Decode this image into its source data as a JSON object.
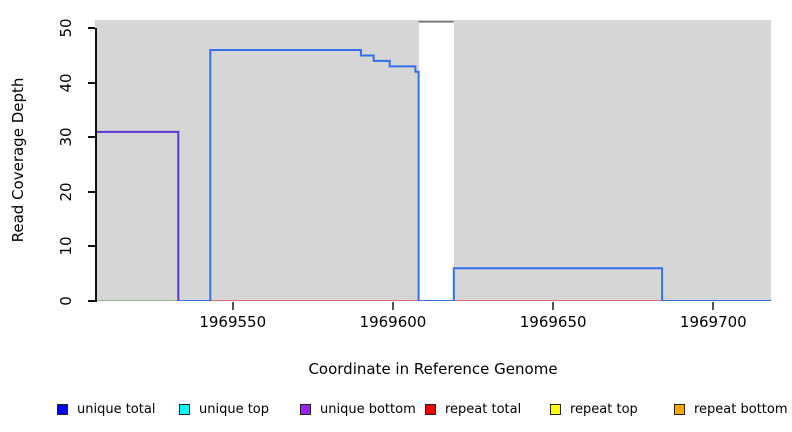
{
  "figure": {
    "y_label": "Read Coverage Depth",
    "x_label": "Coordinate in Reference Genome"
  },
  "legend": {
    "items": [
      {
        "label": "unique total",
        "color": "#0000ee"
      },
      {
        "label": "unique top",
        "color": "#00ffff"
      },
      {
        "label": "unique bottom",
        "color": "#a020f0"
      },
      {
        "label": "repeat total",
        "color": "#ee0000"
      },
      {
        "label": "repeat top",
        "color": "#ffff00"
      },
      {
        "label": "repeat bottom",
        "color": "#ffa500"
      }
    ]
  },
  "chart_data": {
    "type": "line",
    "subtype": "step-coverage",
    "title": "",
    "xlabel": "Coordinate in Reference Genome",
    "ylabel": "Read Coverage Depth",
    "x_axis": {
      "range": [
        1969507,
        1969718
      ],
      "ticks": [
        1969550,
        1969600,
        1969650,
        1969700
      ]
    },
    "y_axis": {
      "range": [
        0,
        51.5
      ],
      "ticks": [
        0,
        10,
        20,
        30,
        40,
        50
      ]
    },
    "panel": {
      "background": "#d6d6d6",
      "gap_region": {
        "x_start": 1969608,
        "x_end": 1969619,
        "color": "#ffffff"
      }
    },
    "series": [
      {
        "name": "zero baseline left",
        "color": "#57a957",
        "width": 1.3,
        "points": [
          [
            1969507,
            0
          ]
        ],
        "x_end": 1969533
      },
      {
        "name": "unique bottom",
        "color": "#5e35d9",
        "width": 2,
        "points": [
          [
            1969507,
            31
          ],
          [
            1969533,
            0
          ]
        ],
        "x_end": 1969543
      },
      {
        "name": "repeat total",
        "color": "#e03145",
        "width": 1.3,
        "points": [
          [
            1969543,
            0
          ]
        ],
        "x_end": 1969718
      },
      {
        "name": "unique total",
        "color": "#3570eb",
        "width": 2,
        "points": [
          [
            1969533,
            0
          ],
          [
            1969543,
            46
          ],
          [
            1969590,
            45
          ],
          [
            1969594,
            44
          ],
          [
            1969599,
            43
          ],
          [
            1969607,
            42
          ],
          [
            1969608,
            0
          ],
          [
            1969619,
            6
          ],
          [
            1969684,
            0
          ]
        ],
        "x_end": 1969718
      },
      {
        "name": "clipped peak above ylim",
        "color": "#777777",
        "width": 2,
        "points": [
          [
            1969608,
            51.2
          ]
        ],
        "x_end": 1969619
      }
    ]
  }
}
